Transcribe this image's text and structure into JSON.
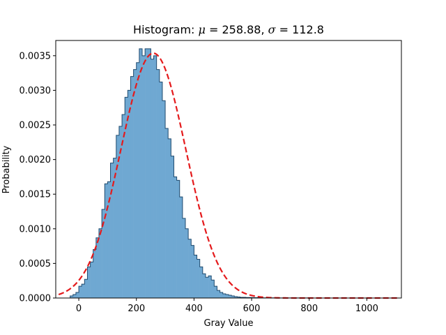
{
  "chart_data": {
    "type": "histogram",
    "title": "Histogram: μ = 258.88, σ = 112.8",
    "title_parts": {
      "prefix": "Histogram",
      "mu_symbol": "μ",
      "mu_value": "258.88",
      "sigma_symbol": "σ",
      "sigma_value": "112.8"
    },
    "xlabel": "Gray Value",
    "ylabel": "Probability",
    "xlim": [
      -80,
      1120
    ],
    "ylim": [
      0,
      0.00372
    ],
    "x_ticks": [
      0,
      200,
      400,
      600,
      800,
      1000
    ],
    "x_tick_labels": [
      "0",
      "200",
      "400",
      "600",
      "800",
      "1000"
    ],
    "y_ticks": [
      0,
      0.0005,
      0.001,
      0.0015,
      0.002,
      0.0025,
      0.003,
      0.0035
    ],
    "y_tick_labels": [
      "0.0000",
      "0.0005",
      "0.0010",
      "0.0015",
      "0.0020",
      "0.0025",
      "0.0030",
      "0.0035"
    ],
    "grid": false,
    "bin_edges": [
      -30,
      -20,
      -10,
      0,
      10,
      20,
      30,
      40,
      50,
      60,
      70,
      80,
      90,
      100,
      110,
      120,
      130,
      140,
      150,
      160,
      170,
      180,
      190,
      200,
      210,
      220,
      230,
      240,
      250,
      260,
      270,
      280,
      290,
      300,
      310,
      320,
      330,
      340,
      350,
      360,
      370,
      380,
      390,
      400,
      410,
      420,
      430,
      440,
      450,
      460,
      470,
      480,
      490,
      500,
      510,
      520,
      530,
      540,
      550,
      560,
      570,
      580,
      590,
      600,
      610,
      620,
      630,
      640,
      650,
      660,
      670,
      680,
      690,
      700,
      710,
      720,
      730,
      740,
      750,
      760,
      770,
      780,
      790,
      800,
      810,
      820,
      830,
      840,
      850,
      860,
      870,
      880,
      890,
      900,
      910,
      920,
      930,
      940,
      950,
      960,
      970,
      980,
      990,
      1000,
      1010,
      1020,
      1030,
      1040,
      1050,
      1060,
      1070,
      1080,
      1090,
      1100
    ],
    "bin_values": [
      3e-05,
      5e-05,
      8e-05,
      0.00017,
      0.0002,
      0.00027,
      0.00045,
      0.00052,
      0.0007,
      0.00087,
      0.001,
      0.00128,
      0.00165,
      0.00168,
      0.00195,
      0.00202,
      0.00235,
      0.00248,
      0.00265,
      0.0029,
      0.003,
      0.0032,
      0.0033,
      0.0034,
      0.0036,
      0.0035,
      0.0036,
      0.0036,
      0.00345,
      0.0035,
      0.0033,
      0.00312,
      0.00285,
      0.00245,
      0.0023,
      0.00205,
      0.00175,
      0.0017,
      0.00146,
      0.00115,
      0.001,
      0.00085,
      0.00076,
      0.00062,
      0.00056,
      0.00045,
      0.00035,
      0.0003,
      0.00032,
      0.00026,
      0.00017,
      0.00011,
      8e-05,
      6e-05,
      5e-05,
      4e-05,
      3e-05,
      2e-05,
      1.5e-05,
      1e-05,
      1e-05,
      8e-06,
      8e-06,
      6e-06,
      5e-06,
      5e-06,
      4e-06,
      3e-06,
      3e-06,
      2e-06,
      2e-06,
      2e-06,
      1e-06,
      1e-06,
      1e-06,
      1e-06,
      1e-06,
      1e-06,
      1e-06,
      1e-06,
      1e-06,
      1e-06,
      1e-06,
      1e-06,
      0.0,
      0.0,
      0.0,
      0.0,
      0.0,
      0.0,
      0.0,
      0.0,
      0.0,
      0.0,
      0.0,
      0.0,
      0.0,
      0.0,
      0.0,
      0.0,
      0.0,
      0.0,
      0.0,
      0.0,
      0.0,
      0.0,
      0.0,
      0.0,
      0.0,
      0.0,
      0.0,
      0.0,
      0.0
    ],
    "fit_curve": {
      "type": "normal_pdf",
      "mu": 258.88,
      "sigma": 112.8,
      "x_range": [
        -70,
        1110
      ],
      "style": "dashed",
      "color": "#e41a1c"
    },
    "bar_color": "#6fa8d2",
    "edge_color": "#1f4a6e"
  }
}
